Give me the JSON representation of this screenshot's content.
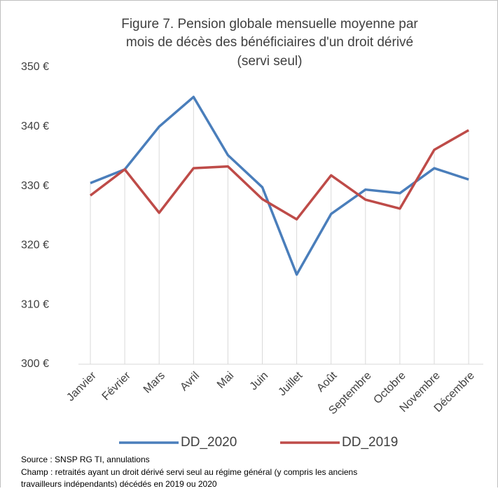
{
  "chart_data": {
    "type": "line",
    "title": [
      "Figure 7. Pension globale mensuelle moyenne par",
      "mois de décès des bénéficiaires d'un droit dérivé",
      "(servi seul)"
    ],
    "categories": [
      "Janvier",
      "Février",
      "Mars",
      "Avril",
      "Mai",
      "Juin",
      "Juillet",
      "Août",
      "Septembre",
      "Octobre",
      "Novembre",
      "Décembre"
    ],
    "series": [
      {
        "name": "DD_2020",
        "color": "#4a7ebb",
        "values": [
          330.5,
          332.8,
          340,
          345,
          335.2,
          329.8,
          315.1,
          325.3,
          329.4,
          328.8,
          333,
          331.1
        ]
      },
      {
        "name": "DD_2019",
        "color": "#be4b48",
        "values": [
          328.4,
          332.8,
          325.5,
          333,
          333.3,
          327.8,
          324.4,
          331.8,
          327.7,
          326.2,
          336.1,
          339.4
        ]
      }
    ],
    "ylim": [
      300,
      350
    ],
    "yticks": [
      {
        "value": 300,
        "label": "300 €"
      },
      {
        "value": 310,
        "label": "310 €"
      },
      {
        "value": 320,
        "label": "320 €"
      },
      {
        "value": 330,
        "label": "330 €"
      },
      {
        "value": 340,
        "label": "340 €"
      },
      {
        "value": 350,
        "label": "350 €"
      }
    ],
    "drop_lines": true,
    "legend": "bottom",
    "notes": [
      "Source : SNSP RG  TI, annulations",
      "Champ : retraités ayant un droit dérivé servi seul  au régime général (y compris les anciens",
      "travailleurs indépendants) décédés en 2019 ou 2020"
    ]
  }
}
